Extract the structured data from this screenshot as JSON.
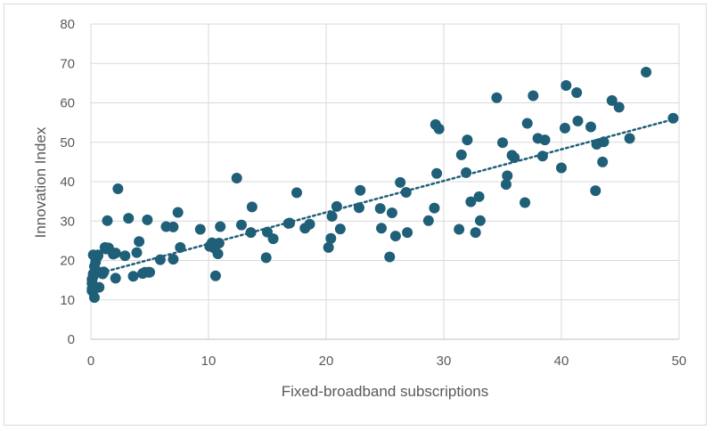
{
  "chart_data": {
    "type": "scatter",
    "title": "",
    "xlabel": "Fixed-broadband subscriptions",
    "ylabel": "Innovation Index",
    "xlim": [
      0,
      50
    ],
    "ylim": [
      0,
      80
    ],
    "x_ticks": [
      0,
      10,
      20,
      30,
      40,
      50
    ],
    "y_ticks": [
      0,
      10,
      20,
      30,
      40,
      50,
      60,
      70,
      80
    ],
    "grid": true,
    "legend": "none",
    "trendline": {
      "style": "dotted",
      "type": "linear",
      "x": [
        0,
        50
      ],
      "y": [
        16.2,
        56.2
      ]
    },
    "colors": {
      "marker": "#1f5f78",
      "grid": "#d9d9d9",
      "trendline": "#1f5f78"
    },
    "series": [
      {
        "x": [
          0.1,
          0.1,
          0.2,
          0.3,
          0.3,
          0.4,
          0.1,
          0.1,
          0.2,
          0.3,
          0.5,
          0.6,
          0.4,
          0.7,
          0.9,
          1.0,
          1.2,
          1.3,
          1.4,
          1.5,
          1.9,
          2.1,
          2.3,
          2.9,
          3.2,
          3.6,
          3.9,
          4.1,
          4.4,
          4.8,
          4.9,
          5.0,
          5.9,
          6.4,
          7.0,
          7.0,
          7.4,
          7.6,
          9.3,
          10.1,
          10.5,
          10.6,
          10.8,
          10.9,
          11.0,
          12.4,
          12.8,
          13.6,
          13.7,
          14.9,
          15.0,
          15.5,
          16.8,
          17.5,
          18.2,
          18.6,
          20.2,
          20.4,
          20.5,
          20.9,
          21.2,
          22.8,
          22.9,
          24.6,
          24.7,
          25.4,
          25.6,
          25.9,
          26.3,
          26.8,
          26.9,
          28.7,
          29.2,
          29.3,
          29.4,
          29.6,
          31.3,
          31.5,
          31.9,
          32.0,
          32.3,
          32.7,
          33.0,
          33.1,
          34.5,
          35.0,
          35.3,
          35.4,
          35.8,
          36.0,
          36.9,
          37.1,
          37.6,
          38.0,
          38.4,
          38.6,
          40.0,
          40.3,
          40.4,
          41.3,
          41.4,
          42.5,
          42.9,
          43.0,
          43.5,
          43.6,
          44.3,
          44.9,
          45.8,
          47.2,
          49.5,
          0.2,
          0.6,
          1.1,
          2.1,
          4.6,
          10.3,
          16.9
        ],
        "y": [
          12.8,
          14.2,
          16.0,
          17.0,
          18.5,
          19.6,
          12.3,
          15.2,
          16.6,
          10.6,
          20.8,
          21.4,
          13.0,
          13.2,
          17.0,
          16.6,
          23.3,
          22.9,
          30.1,
          23.2,
          21.6,
          15.5,
          38.2,
          21.2,
          30.7,
          16.0,
          22.0,
          24.8,
          16.7,
          30.3,
          17.0,
          17.0,
          20.2,
          28.6,
          28.5,
          20.3,
          32.2,
          23.3,
          27.9,
          23.6,
          23.1,
          16.1,
          21.7,
          24.4,
          28.6,
          40.9,
          29.0,
          27.1,
          33.6,
          20.7,
          27.2,
          25.5,
          29.4,
          37.2,
          28.2,
          29.2,
          23.3,
          25.6,
          31.2,
          33.7,
          28.0,
          33.4,
          37.8,
          33.2,
          28.2,
          20.9,
          32.1,
          26.2,
          39.8,
          37.3,
          27.1,
          30.1,
          33.3,
          54.5,
          42.1,
          53.4,
          27.9,
          46.8,
          42.3,
          50.6,
          34.9,
          27.1,
          36.2,
          30.1,
          61.3,
          49.9,
          39.3,
          41.5,
          46.7,
          46.1,
          34.7,
          54.8,
          61.8,
          51.0,
          46.5,
          50.6,
          43.5,
          53.6,
          64.4,
          62.6,
          55.4,
          53.9,
          37.7,
          49.5,
          45.0,
          50.1,
          60.6,
          58.9,
          51.0,
          67.8,
          56.1,
          21.4,
          21.2,
          17.1,
          21.9,
          17.0,
          24.5,
          29.5
        ]
      }
    ]
  }
}
